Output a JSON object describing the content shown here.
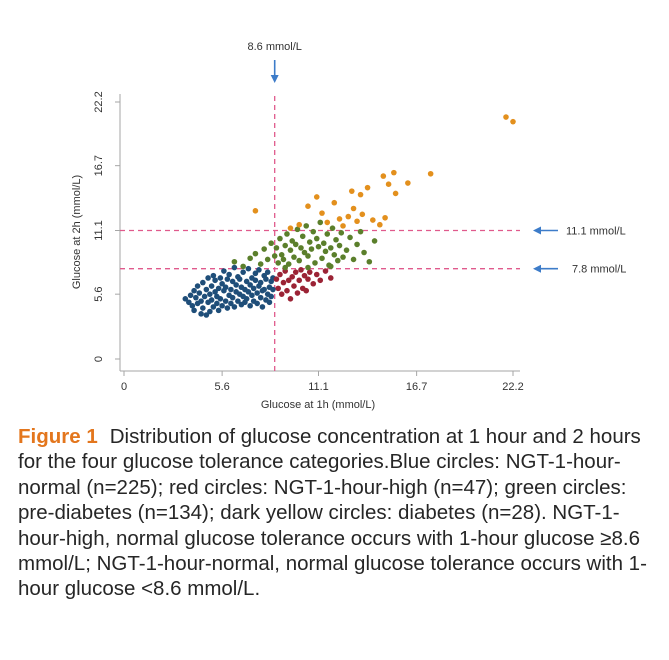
{
  "chart_data": {
    "type": "scatter",
    "xlabel": "Glucose at 1h (mmol/L)",
    "ylabel": "Glucose at 2h (mmol/L)",
    "xlim": [
      0,
      22.2
    ],
    "ylim": [
      0,
      22.2
    ],
    "xticks": [
      "0",
      "5.6",
      "11.1",
      "16.7",
      "22.2"
    ],
    "yticks": [
      "0",
      "5.6",
      "11.1",
      "16.7",
      "22.2"
    ],
    "reference_lines": {
      "vertical": {
        "value": 8.6,
        "label": "8.6 mmol/L"
      },
      "horizontal": [
        {
          "value": 11.1,
          "label": "11.1 mmol/L"
        },
        {
          "value": 7.8,
          "label": "7.8 mmol/L"
        }
      ]
    },
    "series": [
      {
        "name": "NGT-1-hour-normal",
        "n": 225,
        "color": "#1f4e79",
        "points": [
          [
            3.5,
            5.2
          ],
          [
            3.7,
            4.9
          ],
          [
            3.8,
            5.5
          ],
          [
            3.9,
            4.6
          ],
          [
            4.0,
            5.9
          ],
          [
            4.0,
            4.2
          ],
          [
            4.1,
            5.3
          ],
          [
            4.2,
            6.3
          ],
          [
            4.2,
            4.8
          ],
          [
            4.3,
            5.7
          ],
          [
            4.4,
            3.9
          ],
          [
            4.4,
            5.0
          ],
          [
            4.5,
            6.6
          ],
          [
            4.5,
            4.4
          ],
          [
            4.6,
            5.4
          ],
          [
            4.7,
            6.0
          ],
          [
            4.7,
            3.8
          ],
          [
            4.8,
            4.9
          ],
          [
            4.8,
            7.0
          ],
          [
            4.9,
            5.6
          ],
          [
            4.9,
            4.1
          ],
          [
            5.0,
            6.3
          ],
          [
            5.0,
            5.1
          ],
          [
            5.1,
            4.5
          ],
          [
            5.1,
            7.2
          ],
          [
            5.2,
            5.8
          ],
          [
            5.2,
            6.8
          ],
          [
            5.3,
            4.8
          ],
          [
            5.3,
            5.4
          ],
          [
            5.4,
            6.1
          ],
          [
            5.4,
            4.2
          ],
          [
            5.5,
            7.0
          ],
          [
            5.5,
            5.2
          ],
          [
            5.6,
            6.5
          ],
          [
            5.6,
            4.6
          ],
          [
            5.7,
            5.9
          ],
          [
            5.7,
            7.6
          ],
          [
            5.8,
            5.0
          ],
          [
            5.8,
            6.2
          ],
          [
            5.9,
            4.4
          ],
          [
            5.9,
            6.9
          ],
          [
            6.0,
            5.5
          ],
          [
            6.0,
            7.3
          ],
          [
            6.1,
            4.8
          ],
          [
            6.1,
            6.0
          ],
          [
            6.2,
            5.3
          ],
          [
            6.2,
            6.7
          ],
          [
            6.3,
            7.9
          ],
          [
            6.3,
            4.5
          ],
          [
            6.4,
            5.8
          ],
          [
            6.4,
            6.4
          ],
          [
            6.5,
            5.0
          ],
          [
            6.5,
            7.1
          ],
          [
            6.6,
            5.6
          ],
          [
            6.6,
            6.9
          ],
          [
            6.7,
            4.7
          ],
          [
            6.7,
            6.2
          ],
          [
            6.8,
            7.5
          ],
          [
            6.8,
            5.4
          ],
          [
            6.9,
            6.0
          ],
          [
            6.9,
            4.9
          ],
          [
            7.0,
            6.7
          ],
          [
            7.0,
            5.2
          ],
          [
            7.1,
            7.8
          ],
          [
            7.1,
            5.8
          ],
          [
            7.2,
            6.4
          ],
          [
            7.2,
            4.6
          ],
          [
            7.3,
            7.0
          ],
          [
            7.3,
            5.5
          ],
          [
            7.4,
            6.1
          ],
          [
            7.4,
            5.0
          ],
          [
            7.5,
            6.8
          ],
          [
            7.5,
            7.4
          ],
          [
            7.6,
            5.7
          ],
          [
            7.6,
            4.8
          ],
          [
            7.7,
            6.3
          ],
          [
            7.7,
            7.7
          ],
          [
            7.8,
            5.3
          ],
          [
            7.8,
            6.6
          ],
          [
            7.9,
            5.9
          ],
          [
            7.9,
            4.5
          ],
          [
            8.0,
            7.2
          ],
          [
            8.0,
            6.0
          ],
          [
            8.1,
            5.1
          ],
          [
            8.1,
            6.9
          ],
          [
            8.2,
            5.6
          ],
          [
            8.2,
            7.5
          ],
          [
            8.3,
            6.2
          ],
          [
            8.3,
            4.9
          ],
          [
            8.4,
            6.7
          ],
          [
            8.4,
            5.4
          ],
          [
            8.5,
            7.0
          ],
          [
            8.5,
            6.0
          ]
        ]
      },
      {
        "name": "NGT-1-hour-high",
        "n": 47,
        "color": "#9b2335",
        "points": [
          [
            8.7,
            6.9
          ],
          [
            8.8,
            6.1
          ],
          [
            8.9,
            7.3
          ],
          [
            9.0,
            5.6
          ],
          [
            9.1,
            6.6
          ],
          [
            9.2,
            7.6
          ],
          [
            9.3,
            5.9
          ],
          [
            9.4,
            6.8
          ],
          [
            9.5,
            5.2
          ],
          [
            9.6,
            7.1
          ],
          [
            9.7,
            6.3
          ],
          [
            9.8,
            7.5
          ],
          [
            9.9,
            5.7
          ],
          [
            10.0,
            6.8
          ],
          [
            10.1,
            7.7
          ],
          [
            10.2,
            6.1
          ],
          [
            10.3,
            7.2
          ],
          [
            10.4,
            5.9
          ],
          [
            10.5,
            6.9
          ],
          [
            10.6,
            7.5
          ],
          [
            10.8,
            6.5
          ],
          [
            11.0,
            7.3
          ],
          [
            11.2,
            6.8
          ],
          [
            11.5,
            7.6
          ],
          [
            11.8,
            7.0
          ]
        ]
      },
      {
        "name": "pre-diabetes",
        "n": 134,
        "color": "#5b7f2b",
        "points": [
          [
            6.3,
            8.4
          ],
          [
            6.8,
            8.0
          ],
          [
            7.2,
            8.7
          ],
          [
            7.5,
            9.1
          ],
          [
            7.8,
            8.2
          ],
          [
            8.0,
            9.5
          ],
          [
            8.2,
            8.6
          ],
          [
            8.4,
            10.0
          ],
          [
            8.6,
            8.9
          ],
          [
            8.7,
            9.6
          ],
          [
            8.8,
            8.3
          ],
          [
            8.9,
            10.4
          ],
          [
            9.0,
            9.0
          ],
          [
            9.1,
            8.6
          ],
          [
            9.2,
            9.8
          ],
          [
            9.3,
            10.8
          ],
          [
            9.4,
            8.2
          ],
          [
            9.5,
            9.4
          ],
          [
            9.6,
            10.2
          ],
          [
            9.7,
            8.8
          ],
          [
            9.8,
            9.9
          ],
          [
            9.9,
            11.2
          ],
          [
            10.0,
            8.5
          ],
          [
            10.1,
            9.6
          ],
          [
            10.2,
            10.6
          ],
          [
            10.3,
            9.2
          ],
          [
            10.4,
            11.5
          ],
          [
            10.5,
            8.9
          ],
          [
            10.6,
            10.1
          ],
          [
            10.7,
            9.5
          ],
          [
            10.8,
            11.0
          ],
          [
            10.9,
            8.3
          ],
          [
            11.0,
            10.4
          ],
          [
            11.1,
            9.7
          ],
          [
            11.2,
            11.8
          ],
          [
            11.3,
            8.7
          ],
          [
            11.4,
            10.0
          ],
          [
            11.5,
            9.3
          ],
          [
            11.6,
            10.8
          ],
          [
            11.7,
            8.1
          ],
          [
            11.8,
            9.6
          ],
          [
            11.9,
            11.3
          ],
          [
            12.0,
            9.0
          ],
          [
            12.1,
            10.3
          ],
          [
            12.2,
            8.5
          ],
          [
            12.3,
            9.8
          ],
          [
            12.4,
            10.9
          ],
          [
            12.5,
            8.8
          ],
          [
            12.7,
            9.4
          ],
          [
            12.9,
            10.5
          ],
          [
            13.1,
            8.6
          ],
          [
            13.3,
            9.9
          ],
          [
            13.5,
            11.0
          ],
          [
            13.7,
            9.2
          ],
          [
            14.0,
            8.4
          ],
          [
            14.3,
            10.2
          ],
          [
            10.5,
            7.9
          ],
          [
            11.8,
            8.0
          ],
          [
            9.2,
            7.9
          ]
        ]
      },
      {
        "name": "diabetes",
        "n": 28,
        "color": "#e3901d",
        "points": [
          [
            7.5,
            12.8
          ],
          [
            9.5,
            11.3
          ],
          [
            10.0,
            11.6
          ],
          [
            10.5,
            13.2
          ],
          [
            11.0,
            14.0
          ],
          [
            11.3,
            12.6
          ],
          [
            11.6,
            11.8
          ],
          [
            12.0,
            13.5
          ],
          [
            12.3,
            12.1
          ],
          [
            12.5,
            11.5
          ],
          [
            12.8,
            12.3
          ],
          [
            13.0,
            14.5
          ],
          [
            13.1,
            13.0
          ],
          [
            13.3,
            11.9
          ],
          [
            13.5,
            14.2
          ],
          [
            13.6,
            12.5
          ],
          [
            13.9,
            14.8
          ],
          [
            14.2,
            12.0
          ],
          [
            14.6,
            11.6
          ],
          [
            14.9,
            12.2
          ],
          [
            14.8,
            15.8
          ],
          [
            15.1,
            15.1
          ],
          [
            15.4,
            16.1
          ],
          [
            15.5,
            14.3
          ],
          [
            16.2,
            15.2
          ],
          [
            17.5,
            16.0
          ],
          [
            21.8,
            20.9
          ],
          [
            22.2,
            20.5
          ]
        ]
      }
    ]
  },
  "caption": {
    "label": "Figure 1",
    "text": "Distribution of glucose concentration at 1 hour and 2 hours for the four glucose tolerance categories.Blue circles: NGT-1-hour-normal (n=225); red circles: NGT-1-hour-high (n=47); green circles: pre-diabetes (n=134); dark yellow circles: diabetes (n=28). NGT-1-hour-high, normal glucose tolerance occurs with 1-hour glucose ≥8.6 mmol/L; NGT-1-hour-normal, normal glucose tolerance occurs with 1-hour glucose <8.6 mmol/L."
  }
}
